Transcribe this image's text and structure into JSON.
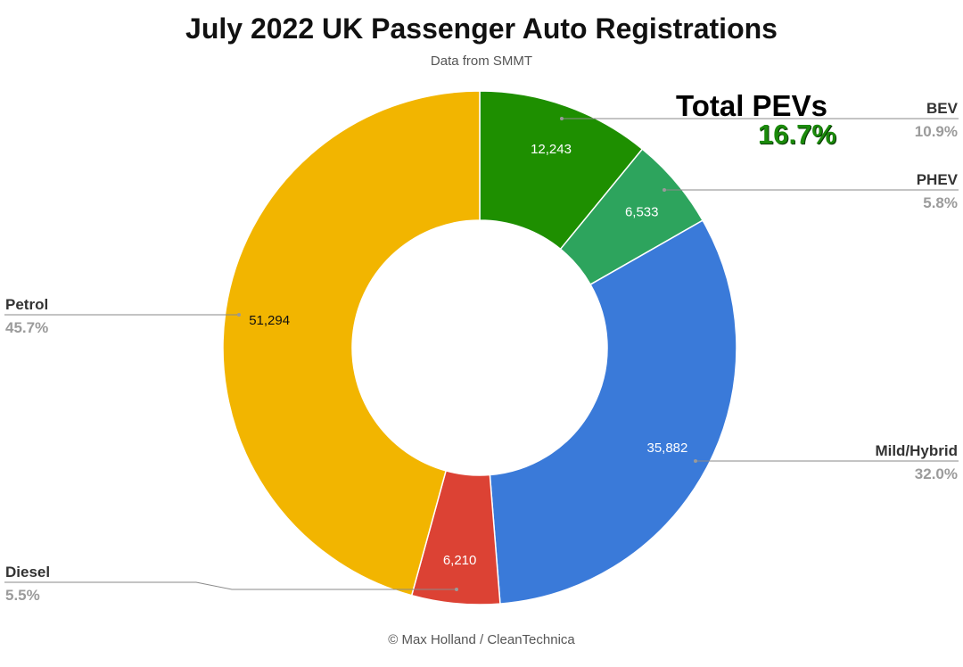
{
  "title": "July 2022 UK Passenger Auto Registrations",
  "subtitle": "Data from SMMT",
  "credit": "© Max Holland / CleanTechnica",
  "annotation": {
    "label": "Total PEVs",
    "value": "16.7%",
    "color": "#1b8a0b"
  },
  "chart_data": {
    "type": "pie",
    "donut": true,
    "legend": "none",
    "slices": [
      {
        "name": "BEV",
        "value": 12243,
        "value_label": "12,243",
        "percent_label": "10.9%",
        "color": "#1e8f00"
      },
      {
        "name": "PHEV",
        "value": 6533,
        "value_label": "6,533",
        "percent_label": "5.8%",
        "color": "#2da45d"
      },
      {
        "name": "Mild/Hybrid",
        "value": 35882,
        "value_label": "35,882",
        "percent_label": "32.0%",
        "color": "#3a7ad9"
      },
      {
        "name": "Diesel",
        "value": 6210,
        "value_label": "6,210",
        "percent_label": "5.5%",
        "color": "#dc4234"
      },
      {
        "name": "Petrol",
        "value": 51294,
        "value_label": "51,294",
        "percent_label": "45.7%",
        "color": "#f2b500"
      }
    ]
  }
}
